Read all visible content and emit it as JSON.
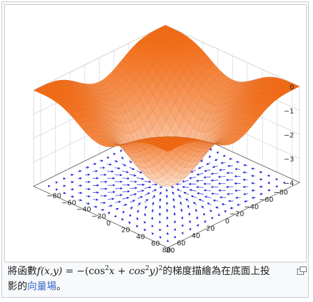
{
  "caption": {
    "prefix": "將函數",
    "formula_fn": "f",
    "formula_args": "(x,y)",
    "formula_eq": " = −(cos",
    "exp1": "2",
    "formula_mid1": "x + cos",
    "exp2": "2",
    "formula_mid2": "y)",
    "exp3": "2",
    "suffix_line1": "的梯度描繪為在底面上投",
    "suffix_line2": "影的",
    "link_text": "向量場",
    "period": "。"
  },
  "magnify_icon": "enlarge-icon",
  "chart_data": {
    "type": "surface3d",
    "z_ticks": [
      "0",
      "−1",
      "−2",
      "−3",
      "−4"
    ],
    "x_ticks": [
      "−80",
      "−60",
      "−40",
      "−20",
      "0",
      "20",
      "40",
      "60",
      "80"
    ],
    "y_ticks": [
      "80",
      "60",
      "40",
      "20",
      "0",
      "−20",
      "−40",
      "−60",
      "−80"
    ],
    "xlim": [
      -90,
      90
    ],
    "ylim": [
      -90,
      90
    ],
    "zlim": [
      -4,
      0
    ],
    "colors": {
      "surface_high": "#f36a13",
      "surface_low": "#fff6ee",
      "arrows": "#2222dd",
      "grid": "#c9c9c9"
    }
  }
}
